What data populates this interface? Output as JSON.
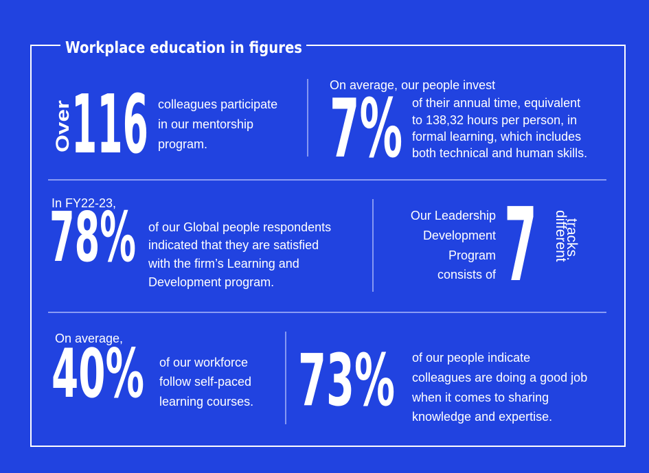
{
  "header": {
    "title": "Workplace education in figures"
  },
  "stats": [
    {
      "prefix": "Over",
      "figure": "116",
      "lines": [
        "colleagues participate",
        "in our mentorship",
        "program."
      ]
    },
    {
      "intro": "On average, our people invest",
      "figure": "7%",
      "lines": [
        "of their annual time, equivalent",
        "to 138,32 hours per person, in",
        "formal learning, which includes",
        "both technical and human skills."
      ]
    },
    {
      "intro": "In FY22-23,",
      "figure": "78%",
      "lines": [
        "of our Global people respondents",
        "indicated that they are satisfied",
        "with the firm’s Learning and",
        "Development program."
      ]
    },
    {
      "lines": [
        "Our Leadership",
        "Development",
        "Program",
        "consists of"
      ],
      "figure": "7",
      "suffix": [
        "different",
        "tracks."
      ]
    },
    {
      "intro": "On average,",
      "figure": "40%",
      "lines": [
        "of our workforce",
        "follow self-paced",
        "learning courses."
      ]
    },
    {
      "figure": "73%",
      "lines": [
        "of our people indicate",
        "colleagues are doing a good job",
        "when it comes to sharing",
        "knowledge and expertise."
      ]
    }
  ]
}
